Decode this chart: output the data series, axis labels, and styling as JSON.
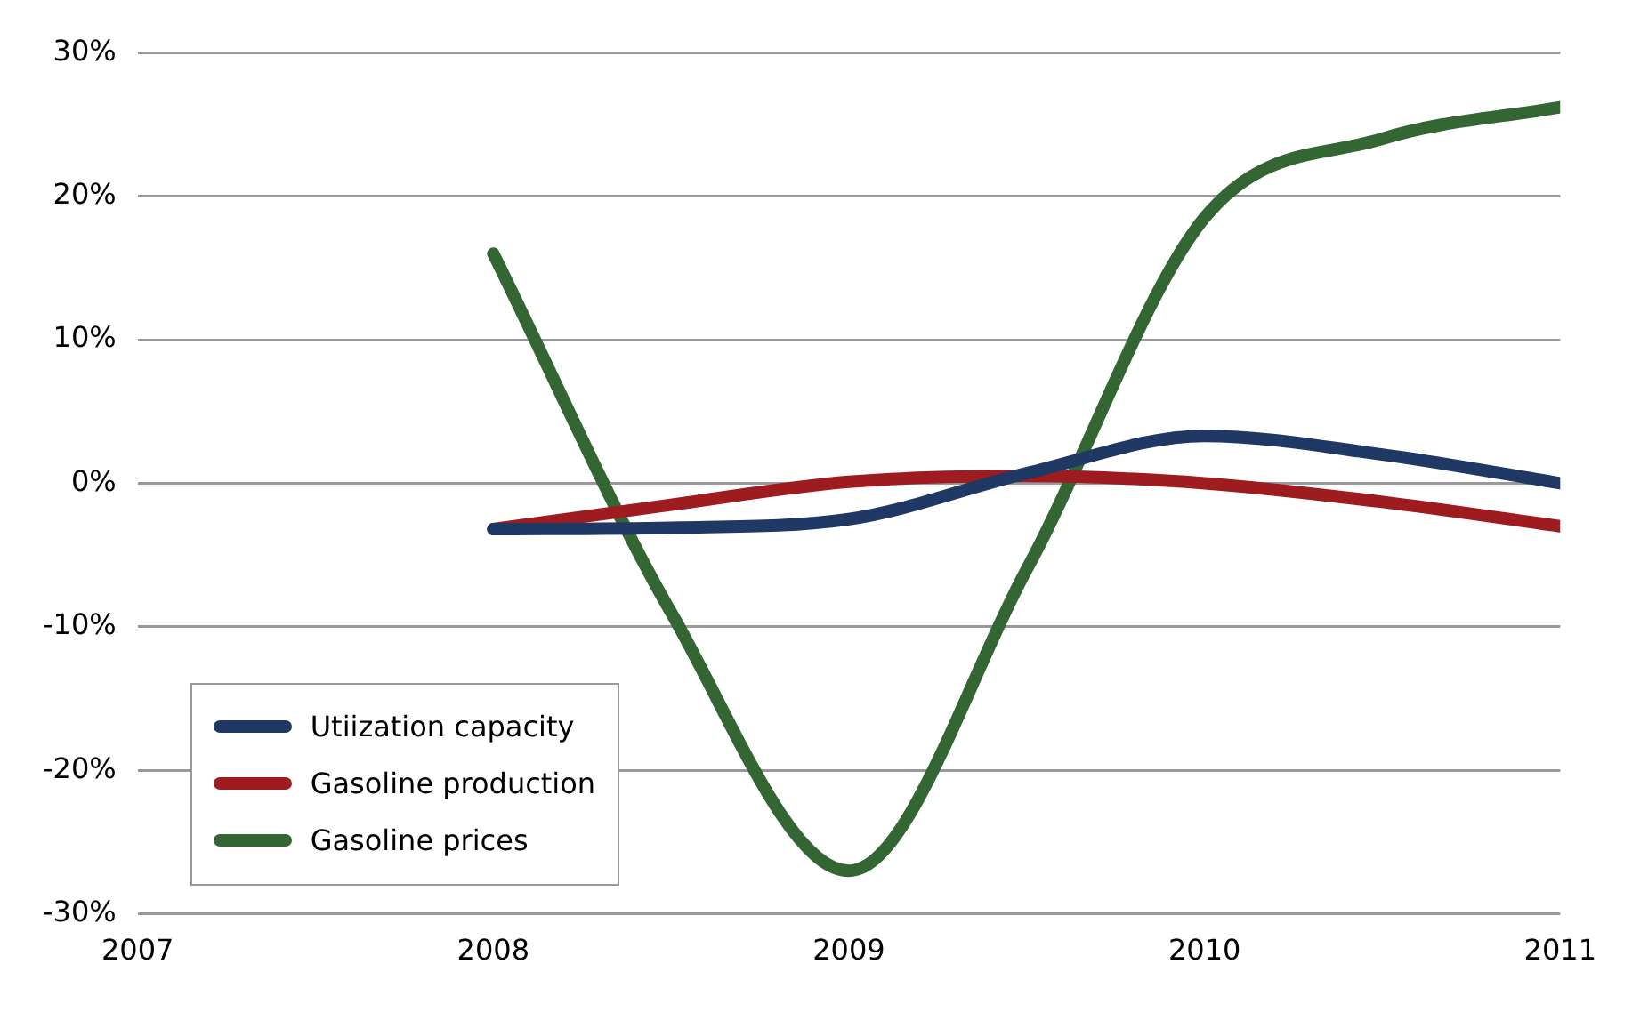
{
  "chart_data": {
    "type": "line",
    "x": [
      2008,
      2008.5,
      2009,
      2009.5,
      2010,
      2010.5,
      2011
    ],
    "series": [
      {
        "name": "Utiization capacity",
        "color": "#1f3864",
        "values": [
          -3.2,
          -3.1,
          -2.5,
          0.7,
          3.3,
          2,
          0
        ]
      },
      {
        "name": "Gasoline production",
        "color": "#9e1b20",
        "values": [
          -3.2,
          -1.5,
          0.1,
          0.5,
          0,
          -1.3,
          -3
        ]
      },
      {
        "name": "Gasoline prices",
        "color": "#336633",
        "values": [
          16,
          -9,
          -27,
          -6,
          18.5,
          24,
          26.2
        ]
      }
    ],
    "xlim": [
      2007,
      2011
    ],
    "xticks": [
      2007,
      2008,
      2009,
      2010,
      2011
    ],
    "ylim": [
      -30,
      30
    ],
    "yticks": [
      {
        "value": -30,
        "label": "-30%"
      },
      {
        "value": -20,
        "label": "-20%"
      },
      {
        "value": -10,
        "label": "-10%"
      },
      {
        "value": 0,
        "label": "0%"
      },
      {
        "value": 10,
        "label": "10%"
      },
      {
        "value": 20,
        "label": "20%"
      },
      {
        "value": 30,
        "label": "30%"
      }
    ],
    "grid": "y",
    "legend": "bottom left",
    "marker": "none",
    "line_style": "solid"
  }
}
